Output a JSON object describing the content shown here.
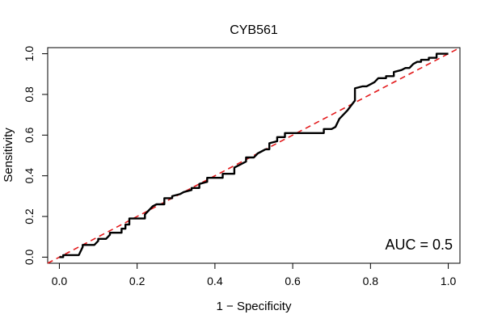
{
  "chart_data": {
    "type": "line",
    "title": "CYB561",
    "xlabel": "1 − Specificity",
    "ylabel": "Sensitivity",
    "xlim": [
      -0.03,
      1.03
    ],
    "ylim": [
      -0.03,
      1.03
    ],
    "x_ticks": [
      0.0,
      0.2,
      0.4,
      0.6,
      0.8,
      1.0
    ],
    "x_tick_labels": [
      "0.0",
      "0.2",
      "0.4",
      "0.6",
      "0.8",
      "1.0"
    ],
    "y_ticks": [
      0.0,
      0.2,
      0.4,
      0.6,
      0.8,
      1.0
    ],
    "y_tick_labels": [
      "0.0",
      "0.2",
      "0.4",
      "0.6",
      "0.8",
      "1.0"
    ],
    "grid": false,
    "annotation": "AUC = 0.5",
    "reference_line": {
      "x": [
        0,
        1
      ],
      "y": [
        0,
        1
      ],
      "color": "#e31a1c",
      "style": "dashed"
    },
    "series": [
      {
        "color": "#000000",
        "x": [
          0.0,
          0.01,
          0.01,
          0.05,
          0.06,
          0.06,
          0.09,
          0.1,
          0.1,
          0.12,
          0.13,
          0.13,
          0.16,
          0.16,
          0.17,
          0.17,
          0.18,
          0.18,
          0.22,
          0.22,
          0.24,
          0.25,
          0.27,
          0.27,
          0.29,
          0.29,
          0.31,
          0.32,
          0.34,
          0.34,
          0.36,
          0.36,
          0.38,
          0.38,
          0.42,
          0.42,
          0.45,
          0.45,
          0.48,
          0.48,
          0.5,
          0.51,
          0.52,
          0.53,
          0.54,
          0.54,
          0.56,
          0.56,
          0.58,
          0.58,
          0.62,
          0.68,
          0.68,
          0.7,
          0.71,
          0.72,
          0.74,
          0.76,
          0.76,
          0.78,
          0.79,
          0.81,
          0.82,
          0.84,
          0.84,
          0.86,
          0.86,
          0.88,
          0.89,
          0.9,
          0.91,
          0.92,
          0.93,
          0.93,
          0.95,
          0.95,
          0.97,
          0.97,
          1.0
        ],
        "y": [
          0.0,
          0.0,
          0.01,
          0.01,
          0.05,
          0.06,
          0.06,
          0.08,
          0.09,
          0.09,
          0.11,
          0.12,
          0.12,
          0.14,
          0.14,
          0.16,
          0.16,
          0.19,
          0.19,
          0.21,
          0.25,
          0.26,
          0.26,
          0.29,
          0.29,
          0.3,
          0.31,
          0.32,
          0.33,
          0.34,
          0.34,
          0.36,
          0.37,
          0.39,
          0.39,
          0.41,
          0.41,
          0.44,
          0.47,
          0.49,
          0.49,
          0.51,
          0.52,
          0.53,
          0.53,
          0.56,
          0.57,
          0.59,
          0.59,
          0.61,
          0.61,
          0.61,
          0.63,
          0.63,
          0.64,
          0.68,
          0.72,
          0.77,
          0.83,
          0.84,
          0.84,
          0.86,
          0.88,
          0.88,
          0.89,
          0.89,
          0.91,
          0.92,
          0.93,
          0.93,
          0.95,
          0.96,
          0.96,
          0.97,
          0.97,
          0.98,
          0.98,
          1.0,
          1.0
        ]
      }
    ]
  }
}
